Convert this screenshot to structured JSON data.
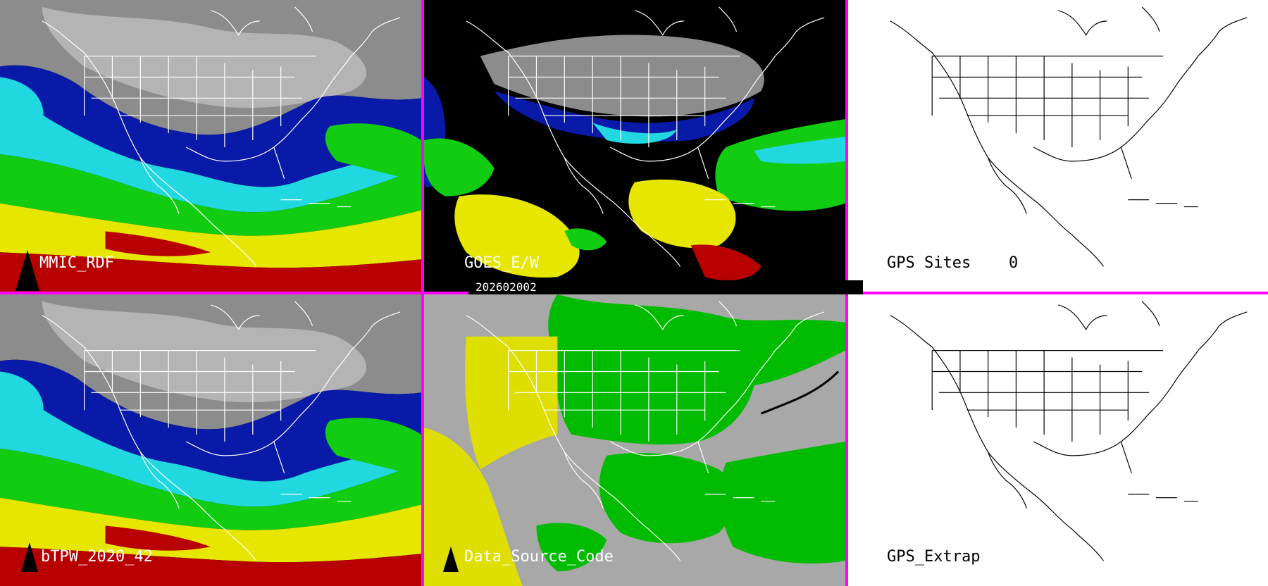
{
  "panels": {
    "top_left": {
      "label": "MMIC_RDF"
    },
    "top_middle": {
      "label": "GOES_E/W"
    },
    "top_right": {
      "label": "GPS Sites",
      "count": "0"
    },
    "bottom_left": {
      "label": "bTPW_2020_42"
    },
    "bottom_middle": {
      "label": "Data_Source_Code"
    },
    "bottom_right": {
      "label": "GPS_Extrap"
    }
  },
  "timestamp": "202602002",
  "colors": {
    "divider": "#ff00ff",
    "dry_gray": "#9a9a9a",
    "blue": "#0a1aa8",
    "cyan": "#22d8e0",
    "green": "#11cc11",
    "yellow": "#e6e600",
    "red": "#b80000",
    "source_gray": "#a8a8a8",
    "source_green": "#00bb00",
    "source_yellow": "#dede00"
  },
  "icons": [
    "north-arrow-icon"
  ]
}
